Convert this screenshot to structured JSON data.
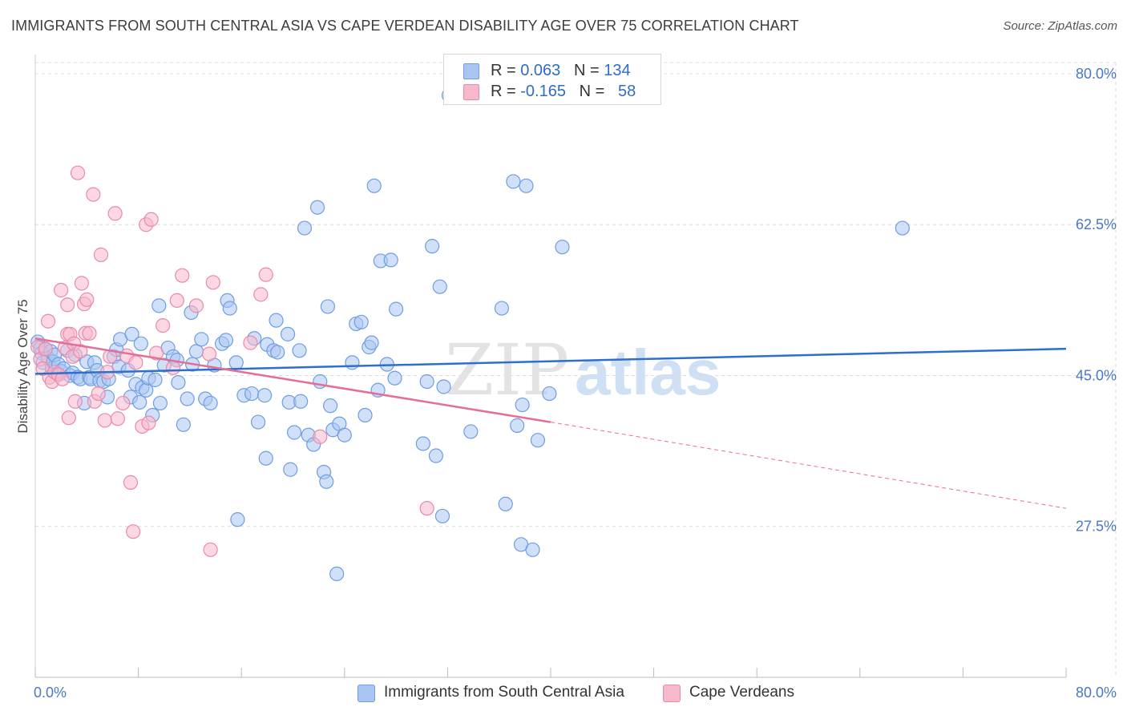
{
  "title": "IMMIGRANTS FROM SOUTH CENTRAL ASIA VS CAPE VERDEAN DISABILITY AGE OVER 75 CORRELATION CHART",
  "source": "Source: ZipAtlas.com",
  "watermark": {
    "zip": "ZIP",
    "atlas": "atlas"
  },
  "legend": {
    "rows": [
      {
        "r_label": "R =",
        "r_value": "0.063",
        "n_label": "N =",
        "n_value": "134",
        "color": "#a9c6f2",
        "stroke": "#6f9de0"
      },
      {
        "r_label": "R =",
        "r_value": "-0.165",
        "n_label": "N =",
        "n_value": "58",
        "color": "#f7b8cc",
        "stroke": "#e98aa9"
      }
    ]
  },
  "bottom_legend": [
    {
      "label": "Immigrants from South Central Asia",
      "color": "#a9c6f2",
      "stroke": "#6f9de0"
    },
    {
      "label": "Cape Verdeans",
      "color": "#f7b8cc",
      "stroke": "#e98aa9"
    }
  ],
  "chart_data": {
    "type": "scatter",
    "title": "IMMIGRANTS FROM SOUTH CENTRAL ASIA VS CAPE VERDEAN DISABILITY AGE OVER 75 CORRELATION CHART",
    "xlabel": "",
    "ylabel": "Disability Age Over 75",
    "xlim": [
      0,
      80
    ],
    "ylim": [
      10,
      81.3
    ],
    "x_tick_labels": [
      "0.0%",
      "80.0%"
    ],
    "y_ticks": [
      27.5,
      45.0,
      62.5,
      80.0
    ],
    "y_tick_labels": [
      "27.5%",
      "45.0%",
      "62.5%",
      "80.0%"
    ],
    "grid": true,
    "legend_position": "top-center",
    "series": [
      {
        "name": "Immigrants from South Central Asia",
        "color": "#6f9de0",
        "fill": "#a9c6f2",
        "trend": {
          "x": [
            0,
            80
          ],
          "y": [
            45.2,
            48.1
          ],
          "color": "#2e6fce"
        },
        "points": [
          [
            0.2,
            48.9
          ],
          [
            0.4,
            48.2
          ],
          [
            0.5,
            47.6
          ],
          [
            0.6,
            46.5
          ],
          [
            0.8,
            48.0
          ],
          [
            1.0,
            47.0
          ],
          [
            1.2,
            47.8
          ],
          [
            1.3,
            45.8
          ],
          [
            1.4,
            46.6
          ],
          [
            1.5,
            47.4
          ],
          [
            1.7,
            45.2
          ],
          [
            1.8,
            46.3
          ],
          [
            2.0,
            45.5
          ],
          [
            2.2,
            45.8
          ],
          [
            2.5,
            47.9
          ],
          [
            2.7,
            45.0
          ],
          [
            2.9,
            45.3
          ],
          [
            3.1,
            47.4
          ],
          [
            3.3,
            44.8
          ],
          [
            3.5,
            44.6
          ],
          [
            3.8,
            41.8
          ],
          [
            4.0,
            46.6
          ],
          [
            4.2,
            44.8
          ],
          [
            4.3,
            44.6
          ],
          [
            4.6,
            46.5
          ],
          [
            4.8,
            45.6
          ],
          [
            5.0,
            44.4
          ],
          [
            5.3,
            44.3
          ],
          [
            5.6,
            42.5
          ],
          [
            5.7,
            44.6
          ],
          [
            6.1,
            47.2
          ],
          [
            6.3,
            48.0
          ],
          [
            6.5,
            46.0
          ],
          [
            6.6,
            49.2
          ],
          [
            7.2,
            45.6
          ],
          [
            7.4,
            42.5
          ],
          [
            7.5,
            49.8
          ],
          [
            7.8,
            44.0
          ],
          [
            8.1,
            41.9
          ],
          [
            8.2,
            48.7
          ],
          [
            8.3,
            43.6
          ],
          [
            8.6,
            43.3
          ],
          [
            8.8,
            44.7
          ],
          [
            9.1,
            40.4
          ],
          [
            9.3,
            44.5
          ],
          [
            9.6,
            53.1
          ],
          [
            9.7,
            41.8
          ],
          [
            10.0,
            46.2
          ],
          [
            10.3,
            48.2
          ],
          [
            10.7,
            47.2
          ],
          [
            11.0,
            46.8
          ],
          [
            11.1,
            44.2
          ],
          [
            11.5,
            39.3
          ],
          [
            11.8,
            42.3
          ],
          [
            12.1,
            52.3
          ],
          [
            12.2,
            46.3
          ],
          [
            12.5,
            47.8
          ],
          [
            12.9,
            49.2
          ],
          [
            13.2,
            42.3
          ],
          [
            13.6,
            41.8
          ],
          [
            13.9,
            46.2
          ],
          [
            14.5,
            48.7
          ],
          [
            14.8,
            49.1
          ],
          [
            14.9,
            53.7
          ],
          [
            15.1,
            52.8
          ],
          [
            15.6,
            46.5
          ],
          [
            15.7,
            28.3
          ],
          [
            16.2,
            42.7
          ],
          [
            16.8,
            42.9
          ],
          [
            17.0,
            49.3
          ],
          [
            17.3,
            39.6
          ],
          [
            17.8,
            42.7
          ],
          [
            17.9,
            35.4
          ],
          [
            18.0,
            48.6
          ],
          [
            18.5,
            47.9
          ],
          [
            18.7,
            51.4
          ],
          [
            18.8,
            47.7
          ],
          [
            19.8,
            34.1
          ],
          [
            19.6,
            49.8
          ],
          [
            19.7,
            41.9
          ],
          [
            20.1,
            38.4
          ],
          [
            20.5,
            47.9
          ],
          [
            20.6,
            42.0
          ],
          [
            20.9,
            62.1
          ],
          [
            21.2,
            38.1
          ],
          [
            21.6,
            37.0
          ],
          [
            21.9,
            64.5
          ],
          [
            22.1,
            44.3
          ],
          [
            22.4,
            33.8
          ],
          [
            22.6,
            32.7
          ],
          [
            22.7,
            53.0
          ],
          [
            22.9,
            41.5
          ],
          [
            23.1,
            38.7
          ],
          [
            23.4,
            22.0
          ],
          [
            23.6,
            39.4
          ],
          [
            24.0,
            38.1
          ],
          [
            24.6,
            46.5
          ],
          [
            24.9,
            51.0
          ],
          [
            25.3,
            51.2
          ],
          [
            25.6,
            40.4
          ],
          [
            25.9,
            48.3
          ],
          [
            26.1,
            48.8
          ],
          [
            26.3,
            67.0
          ],
          [
            26.6,
            43.3
          ],
          [
            26.8,
            58.3
          ],
          [
            27.3,
            46.3
          ],
          [
            27.6,
            58.4
          ],
          [
            27.9,
            44.7
          ],
          [
            28.0,
            52.7
          ],
          [
            30.1,
            37.1
          ],
          [
            30.4,
            44.3
          ],
          [
            30.8,
            60.0
          ],
          [
            31.1,
            35.7
          ],
          [
            31.4,
            55.3
          ],
          [
            31.6,
            28.7
          ],
          [
            31.7,
            43.7
          ],
          [
            32.1,
            77.5
          ],
          [
            33.8,
            38.5
          ],
          [
            36.2,
            52.8
          ],
          [
            36.5,
            30.1
          ],
          [
            37.1,
            67.5
          ],
          [
            37.4,
            39.2
          ],
          [
            37.7,
            25.4
          ],
          [
            37.8,
            41.6
          ],
          [
            38.1,
            67.0
          ],
          [
            38.6,
            24.8
          ],
          [
            39.0,
            37.5
          ],
          [
            39.9,
            42.9
          ],
          [
            40.9,
            59.9
          ],
          [
            67.3,
            62.1
          ]
        ]
      },
      {
        "name": "Cape Verdeans",
        "color": "#e98aa9",
        "fill": "#f7b8cc",
        "trend": {
          "x": [
            0,
            40
          ],
          "y": [
            49.3,
            39.6
          ],
          "dash_to": [
            80,
            29.6
          ],
          "color": "#e36f98"
        },
        "points": [
          [
            0.2,
            48.3
          ],
          [
            0.4,
            46.9
          ],
          [
            0.6,
            45.8
          ],
          [
            0.8,
            48.1
          ],
          [
            1.0,
            51.3
          ],
          [
            1.1,
            44.8
          ],
          [
            1.3,
            44.3
          ],
          [
            1.5,
            45.4
          ],
          [
            1.8,
            45.1
          ],
          [
            2.0,
            54.9
          ],
          [
            2.1,
            44.6
          ],
          [
            2.3,
            48.2
          ],
          [
            2.5,
            49.8
          ],
          [
            2.5,
            53.2
          ],
          [
            2.6,
            40.1
          ],
          [
            2.7,
            49.8
          ],
          [
            2.9,
            47.2
          ],
          [
            3.0,
            48.7
          ],
          [
            3.1,
            42.0
          ],
          [
            3.3,
            68.5
          ],
          [
            3.5,
            47.8
          ],
          [
            3.6,
            55.7
          ],
          [
            3.8,
            53.3
          ],
          [
            3.9,
            49.9
          ],
          [
            4.0,
            53.8
          ],
          [
            4.2,
            49.9
          ],
          [
            4.5,
            66.0
          ],
          [
            4.6,
            42.0
          ],
          [
            4.9,
            42.9
          ],
          [
            5.1,
            59.0
          ],
          [
            5.4,
            39.8
          ],
          [
            5.6,
            45.4
          ],
          [
            5.8,
            47.2
          ],
          [
            6.2,
            63.8
          ],
          [
            6.4,
            40.0
          ],
          [
            6.8,
            41.8
          ],
          [
            7.1,
            47.3
          ],
          [
            7.4,
            32.6
          ],
          [
            7.6,
            26.9
          ],
          [
            7.8,
            46.5
          ],
          [
            8.3,
            39.1
          ],
          [
            8.6,
            62.5
          ],
          [
            8.8,
            39.5
          ],
          [
            9.0,
            63.1
          ],
          [
            9.4,
            47.6
          ],
          [
            9.9,
            50.8
          ],
          [
            10.7,
            45.9
          ],
          [
            11.0,
            53.7
          ],
          [
            11.4,
            56.6
          ],
          [
            12.5,
            53.1
          ],
          [
            13.6,
            24.8
          ],
          [
            13.8,
            55.8
          ],
          [
            16.7,
            48.8
          ],
          [
            17.5,
            54.4
          ],
          [
            17.9,
            56.7
          ],
          [
            22.1,
            37.9
          ],
          [
            30.4,
            29.6
          ],
          [
            13.5,
            47.5
          ]
        ]
      }
    ]
  }
}
